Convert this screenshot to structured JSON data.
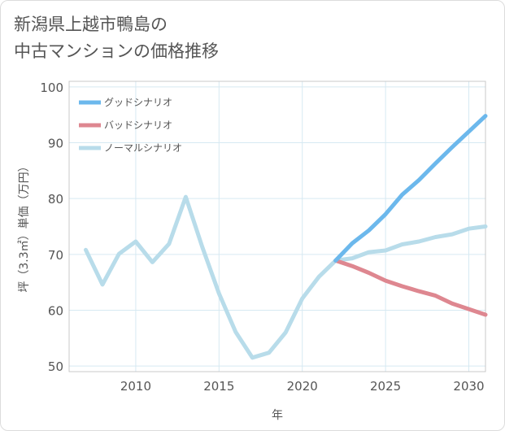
{
  "chart_data": {
    "type": "line",
    "title": [
      "新潟県上越市鴨島の",
      "中古マンションの価格推移"
    ],
    "xlabel": "年",
    "ylabel": "坪（3.3㎡）単価（万円）",
    "xlim": [
      2006,
      2031
    ],
    "ylim": [
      49,
      101
    ],
    "x_ticks": [
      2010,
      2015,
      2020,
      2025,
      2030
    ],
    "y_ticks": [
      50,
      60,
      70,
      80,
      90,
      100
    ],
    "grid": true,
    "legend_position": "top-left",
    "series": [
      {
        "name": "グッドシナリオ",
        "color": "#6cb8ec",
        "x": [
          2022,
          2023,
          2024,
          2025,
          2026,
          2027,
          2028,
          2029,
          2030,
          2031
        ],
        "y": [
          68.9,
          72.0,
          74.3,
          77.2,
          80.7,
          83.3,
          86.3,
          89.2,
          92.0,
          94.8
        ]
      },
      {
        "name": "バッドシナリオ",
        "color": "#de8790",
        "x": [
          2022,
          2023,
          2024,
          2025,
          2026,
          2027,
          2028,
          2029,
          2030,
          2031
        ],
        "y": [
          68.9,
          67.9,
          66.7,
          65.3,
          64.3,
          63.4,
          62.6,
          61.2,
          60.2,
          59.2
        ]
      },
      {
        "name": "ノーマルシナリオ",
        "color": "#b8dcea",
        "x": [
          2007,
          2008,
          2009,
          2010,
          2011,
          2012,
          2013,
          2014,
          2015,
          2016,
          2017,
          2018,
          2019,
          2020,
          2021,
          2022,
          2023,
          2024,
          2025,
          2026,
          2027,
          2028,
          2029,
          2030,
          2031
        ],
        "y": [
          70.8,
          64.6,
          70.1,
          72.3,
          68.6,
          71.9,
          80.3,
          71.3,
          63.0,
          56.1,
          51.5,
          52.4,
          56.0,
          62.1,
          66.0,
          68.9,
          69.3,
          70.4,
          70.7,
          71.8,
          72.3,
          73.1,
          73.6,
          74.6,
          75.0
        ]
      }
    ]
  }
}
